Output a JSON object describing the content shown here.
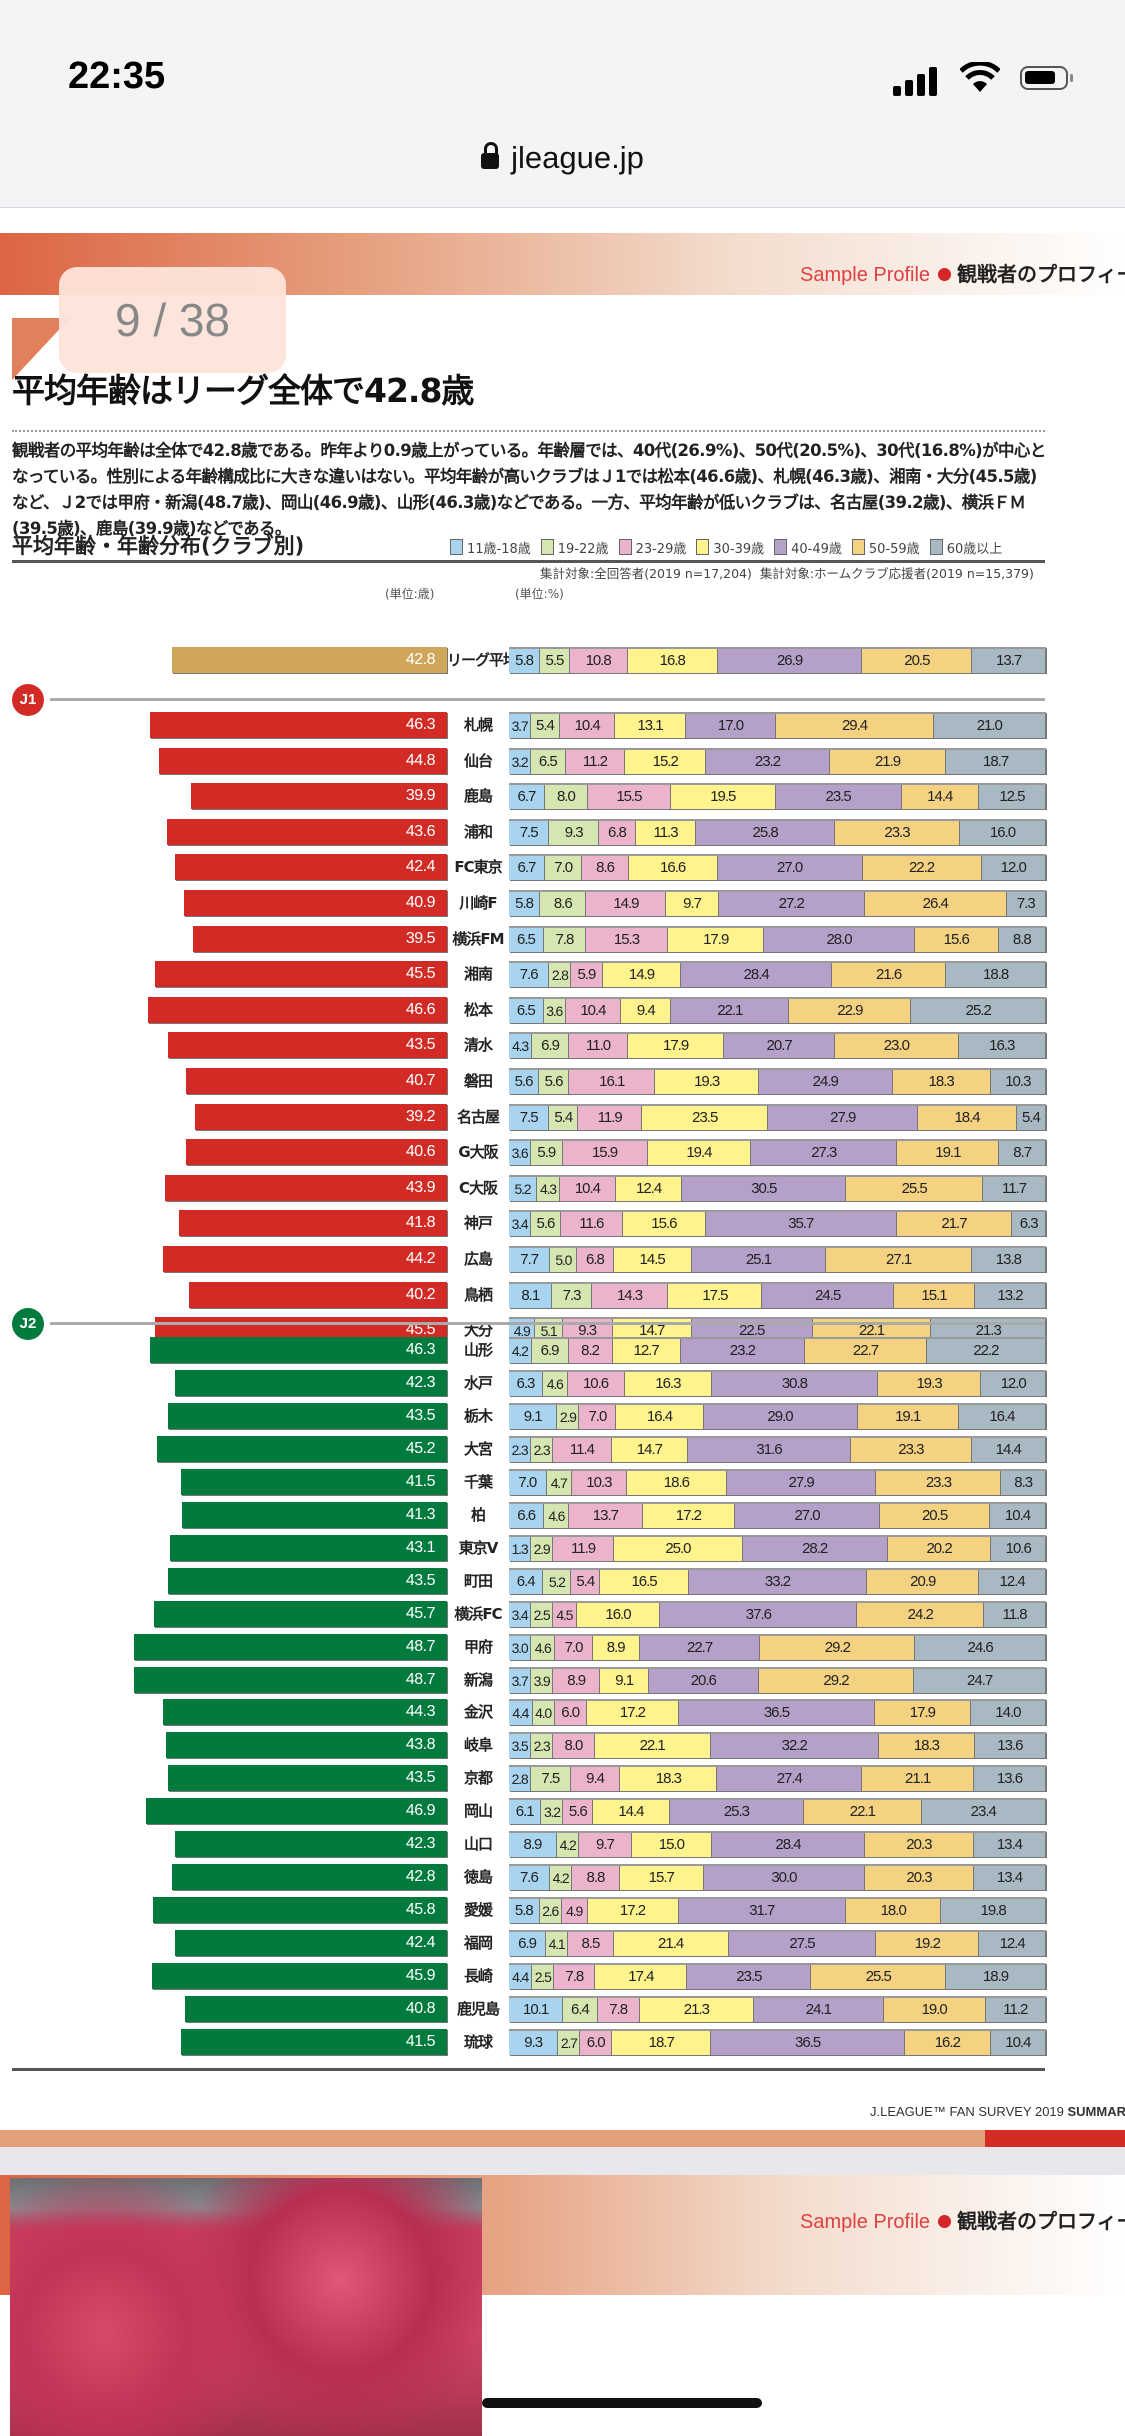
{
  "status": {
    "time": "22:35",
    "url": "jleague.jp"
  },
  "header": {
    "sample_profile": "Sample Profile",
    "section": "観戦者のプロフィール",
    "page_indicator": "9 / 38"
  },
  "title": "平均年齢はリーグ全体で42.8歳",
  "body": "観戦者の平均年齢は全体で42.8歳である。昨年より0.9歳上がっている。年齢層では、40代(26.9%)、50代(20.5%)、30代(16.8%)が中心となっている。性別による年齢構成比に大きな違いはない。平均年齢が高いクラブはＪ1では松本(46.6歳)、札幌(46.3歳)、湘南・大分(45.5歳)など、Ｊ2では甲府・新潟(48.7歳)、岡山(46.9歳)、山形(46.3歳)などである。一方、平均年齢が低いクラブは、名古屋(39.2歳)、横浜ＦＭ(39.5歳)、鹿島(39.9歳)などである。",
  "footer": {
    "text": "J.LEAGUE™ FAN SURVEY 2019 ",
    "bold": "SUMMARY"
  },
  "colors": {
    "j1": "#d22b25",
    "j2": "#007a3d",
    "league": "#cfa65a",
    "accent_red": "#d6262a"
  },
  "chart_data": {
    "type": "bar",
    "title": "平均年齢・年齢分布(クラブ別)",
    "notes": {
      "age": "集計対象:全回答者(2019 n=17,204)",
      "dist": "集計対象:ホームクラブ応援者(2019 n=15,379)"
    },
    "units": {
      "age": "(単位:歳)",
      "dist": "(単位:%)"
    },
    "legend": [
      {
        "label": "11歳-18歳",
        "color": "#a8d4f0"
      },
      {
        "label": "19-22歳",
        "color": "#d6e6b0"
      },
      {
        "label": "23-29歳",
        "color": "#ebb4cc"
      },
      {
        "label": "30-39歳",
        "color": "#fff38e"
      },
      {
        "label": "40-49歳",
        "color": "#b4a0c8"
      },
      {
        "label": "50-59歳",
        "color": "#f4d282"
      },
      {
        "label": "60歳以上",
        "color": "#a9b9c4"
      }
    ],
    "league_average": {
      "label": "リーグ平均",
      "age": 42.8,
      "dist": [
        5.8,
        5.5,
        10.8,
        16.8,
        26.9,
        20.5,
        13.7
      ]
    },
    "groups": [
      {
        "name": "J1",
        "clubs": [
          {
            "club": "札幌",
            "age": 46.3,
            "dist": [
              3.7,
              5.4,
              10.4,
              13.1,
              17.0,
              29.4,
              21.0
            ]
          },
          {
            "club": "仙台",
            "age": 44.8,
            "dist": [
              3.2,
              6.5,
              11.2,
              15.2,
              23.2,
              21.9,
              18.7
            ]
          },
          {
            "club": "鹿島",
            "age": 39.9,
            "dist": [
              6.7,
              8.0,
              15.5,
              19.5,
              23.5,
              14.4,
              12.5
            ]
          },
          {
            "club": "浦和",
            "age": 43.6,
            "dist": [
              7.5,
              9.3,
              6.8,
              11.3,
              25.8,
              23.3,
              16.0
            ]
          },
          {
            "club": "FC東京",
            "age": 42.4,
            "dist": [
              6.7,
              7.0,
              8.6,
              16.6,
              27.0,
              22.2,
              12.0
            ]
          },
          {
            "club": "川崎F",
            "age": 40.9,
            "dist": [
              5.8,
              8.6,
              14.9,
              9.7,
              27.2,
              26.4,
              7.3
            ]
          },
          {
            "club": "横浜FM",
            "age": 39.5,
            "dist": [
              6.5,
              7.8,
              15.3,
              17.9,
              28.0,
              15.6,
              8.8
            ]
          },
          {
            "club": "湘南",
            "age": 45.5,
            "dist": [
              7.6,
              2.8,
              5.9,
              14.9,
              28.4,
              21.6,
              18.8
            ]
          },
          {
            "club": "松本",
            "age": 46.6,
            "dist": [
              6.5,
              3.6,
              10.4,
              9.4,
              22.1,
              22.9,
              25.2
            ]
          },
          {
            "club": "清水",
            "age": 43.5,
            "dist": [
              4.3,
              6.9,
              11.0,
              17.9,
              20.7,
              23.0,
              16.3
            ]
          },
          {
            "club": "磐田",
            "age": 40.7,
            "dist": [
              5.6,
              5.6,
              16.1,
              19.3,
              24.9,
              18.3,
              10.3
            ]
          },
          {
            "club": "名古屋",
            "age": 39.2,
            "dist": [
              7.5,
              5.4,
              11.9,
              23.5,
              27.9,
              18.4,
              5.4
            ]
          },
          {
            "club": "G大阪",
            "age": 40.6,
            "dist": [
              3.6,
              5.9,
              15.9,
              19.4,
              27.3,
              19.1,
              8.7
            ]
          },
          {
            "club": "C大阪",
            "age": 43.9,
            "dist": [
              5.2,
              4.3,
              10.4,
              12.4,
              30.5,
              25.5,
              11.7
            ]
          },
          {
            "club": "神戸",
            "age": 41.8,
            "dist": [
              3.4,
              5.6,
              11.6,
              15.6,
              35.7,
              21.7,
              6.3
            ]
          },
          {
            "club": "広島",
            "age": 44.2,
            "dist": [
              7.7,
              5.0,
              6.8,
              14.5,
              25.1,
              27.1,
              13.8
            ]
          },
          {
            "club": "鳥栖",
            "age": 40.2,
            "dist": [
              8.1,
              7.3,
              14.3,
              17.5,
              24.5,
              15.1,
              13.2
            ]
          },
          {
            "club": "大分",
            "age": 45.5,
            "dist": [
              4.9,
              5.1,
              9.3,
              14.7,
              22.5,
              22.1,
              21.3
            ]
          }
        ]
      },
      {
        "name": "J2",
        "clubs": [
          {
            "club": "山形",
            "age": 46.3,
            "dist": [
              4.2,
              6.9,
              8.2,
              12.7,
              23.2,
              22.7,
              22.2
            ]
          },
          {
            "club": "水戸",
            "age": 42.3,
            "dist": [
              6.3,
              4.6,
              10.6,
              16.3,
              30.8,
              19.3,
              12.0
            ]
          },
          {
            "club": "栃木",
            "age": 43.5,
            "dist": [
              9.1,
              2.9,
              7.0,
              16.4,
              29.0,
              19.1,
              16.4
            ]
          },
          {
            "club": "大宮",
            "age": 45.2,
            "dist": [
              2.3,
              2.3,
              11.4,
              14.7,
              31.6,
              23.3,
              14.4
            ]
          },
          {
            "club": "千葉",
            "age": 41.5,
            "dist": [
              7.0,
              4.7,
              10.3,
              18.6,
              27.9,
              23.3,
              8.3
            ]
          },
          {
            "club": "柏",
            "age": 41.3,
            "dist": [
              6.6,
              4.6,
              13.7,
              17.2,
              27.0,
              20.5,
              10.4
            ]
          },
          {
            "club": "東京V",
            "age": 43.1,
            "dist": [
              1.3,
              2.9,
              11.9,
              25.0,
              28.2,
              20.2,
              10.6
            ]
          },
          {
            "club": "町田",
            "age": 43.5,
            "dist": [
              6.4,
              5.2,
              5.4,
              16.5,
              33.2,
              20.9,
              12.4
            ]
          },
          {
            "club": "横浜FC",
            "age": 45.7,
            "dist": [
              3.4,
              2.5,
              4.5,
              16.0,
              37.6,
              24.2,
              11.8
            ]
          },
          {
            "club": "甲府",
            "age": 48.7,
            "dist": [
              3.0,
              4.6,
              7.0,
              8.9,
              22.7,
              29.2,
              24.6
            ]
          },
          {
            "club": "新潟",
            "age": 48.7,
            "dist": [
              3.7,
              3.9,
              8.9,
              9.1,
              20.6,
              29.2,
              24.7
            ]
          },
          {
            "club": "金沢",
            "age": 44.3,
            "dist": [
              4.4,
              4.0,
              6.0,
              17.2,
              36.5,
              17.9,
              14.0
            ]
          },
          {
            "club": "岐阜",
            "age": 43.8,
            "dist": [
              3.5,
              2.3,
              8.0,
              22.1,
              32.2,
              18.3,
              13.6
            ]
          },
          {
            "club": "京都",
            "age": 43.5,
            "dist": [
              2.8,
              7.5,
              9.4,
              18.3,
              27.4,
              21.1,
              13.6
            ]
          },
          {
            "club": "岡山",
            "age": 46.9,
            "dist": [
              6.1,
              3.2,
              5.6,
              14.4,
              25.3,
              22.1,
              23.4
            ]
          },
          {
            "club": "山口",
            "age": 42.3,
            "dist": [
              8.9,
              4.2,
              9.7,
              15.0,
              28.4,
              20.3,
              13.4
            ]
          },
          {
            "club": "徳島",
            "age": 42.8,
            "dist": [
              7.6,
              4.2,
              8.8,
              15.7,
              30.0,
              20.3,
              13.4
            ]
          },
          {
            "club": "愛媛",
            "age": 45.8,
            "dist": [
              5.8,
              2.6,
              4.9,
              17.2,
              31.7,
              18.0,
              19.8
            ]
          },
          {
            "club": "福岡",
            "age": 42.4,
            "dist": [
              6.9,
              4.1,
              8.5,
              21.4,
              27.5,
              19.2,
              12.4
            ]
          },
          {
            "club": "長崎",
            "age": 45.9,
            "dist": [
              4.4,
              2.5,
              7.8,
              17.4,
              23.5,
              25.5,
              18.9
            ]
          },
          {
            "club": "鹿児島",
            "age": 40.8,
            "dist": [
              10.1,
              6.4,
              7.8,
              21.3,
              24.1,
              19.0,
              11.2
            ]
          },
          {
            "club": "琉球",
            "age": 41.5,
            "dist": [
              9.3,
              2.7,
              6.0,
              18.7,
              36.5,
              16.2,
              10.4
            ]
          }
        ]
      }
    ]
  }
}
